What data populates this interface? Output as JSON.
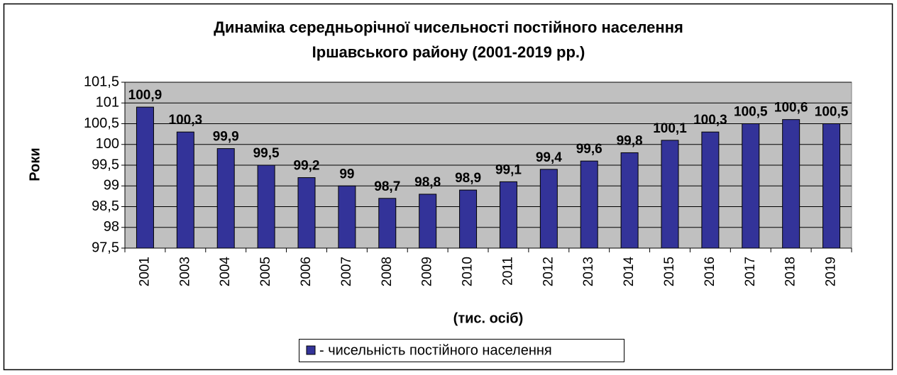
{
  "chart_data": {
    "type": "bar",
    "title": [
      "Динаміка середньорічної чисельності постійного населення",
      "Іршавського району (2001-2019 рр.)"
    ],
    "y_label": "Роки",
    "x_label": "(тис. осіб)",
    "categories": [
      "2001",
      "2003",
      "2004",
      "2005",
      "2006",
      "2007",
      "2008",
      "2009",
      "2010",
      "2011",
      "2012",
      "2013",
      "2014",
      "2015",
      "2016",
      "2017",
      "2018",
      "2019"
    ],
    "series": [
      {
        "name": "- чисельність постійного населення",
        "color": "#333399",
        "values": [
          100.9,
          100.3,
          99.9,
          99.5,
          99.2,
          99,
          98.7,
          98.8,
          98.9,
          99.1,
          99.4,
          99.6,
          99.8,
          100.1,
          100.3,
          100.5,
          100.6,
          100.5
        ],
        "value_labels": [
          "100,9",
          "100,3",
          "99,9",
          "99,5",
          "99,2",
          "99",
          "98,7",
          "98,8",
          "98,9",
          "99,1",
          "99,4",
          "99,6",
          "99,8",
          "100,1",
          "100,3",
          "100,5",
          "100,6",
          "100,5"
        ]
      }
    ],
    "ylim": [
      97.5,
      101.5
    ],
    "yticks": [
      {
        "value": 97.5,
        "label": "97,5"
      },
      98,
      {
        "value": 98.5,
        "label": "98,5"
      },
      99,
      {
        "value": 99.5,
        "label": "99,5"
      },
      100,
      {
        "value": 100.5,
        "label": "100,5"
      },
      101,
      {
        "value": 101.5,
        "label": "101,5"
      }
    ],
    "grid": true,
    "legend": "bottom",
    "plot_background": "#c0c0c0"
  }
}
